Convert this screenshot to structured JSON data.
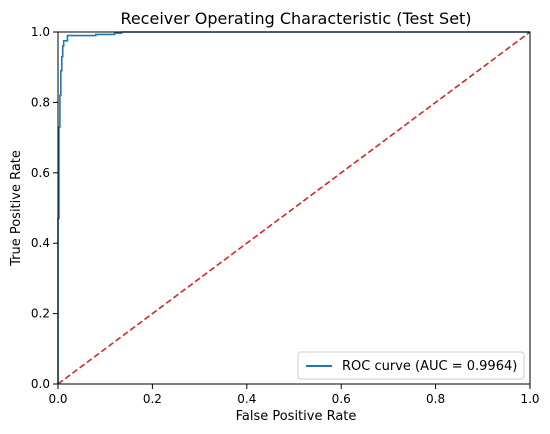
{
  "chart_data": {
    "type": "line",
    "title": "Receiver Operating Characteristic (Test Set)",
    "xlabel": "False Positive Rate",
    "ylabel": "True Positive Rate",
    "xlim": [
      0.0,
      1.0
    ],
    "ylim": [
      0.0,
      1.0
    ],
    "xticks": [
      "0.0",
      "0.2",
      "0.4",
      "0.6",
      "0.8",
      "1.0"
    ],
    "yticks": [
      "0.0",
      "0.2",
      "0.4",
      "0.6",
      "0.8",
      "1.0"
    ],
    "grid": false,
    "legend_position": "bottom-right",
    "series": [
      {
        "name": "ROC curve (AUC = 0.9964)",
        "color": "#1f77b4",
        "line_style": "solid",
        "x": [
          0.0,
          0.0,
          0.002,
          0.002,
          0.004,
          0.004,
          0.006,
          0.006,
          0.008,
          0.008,
          0.01,
          0.01,
          0.012,
          0.012,
          0.02,
          0.02,
          0.08,
          0.08,
          0.12,
          0.12,
          0.135,
          0.135,
          1.0
        ],
        "y": [
          0.0,
          0.47,
          0.47,
          0.73,
          0.73,
          0.82,
          0.82,
          0.89,
          0.89,
          0.93,
          0.93,
          0.96,
          0.96,
          0.975,
          0.975,
          0.99,
          0.99,
          0.993,
          0.993,
          0.997,
          0.997,
          1.0,
          1.0
        ]
      },
      {
        "name": "",
        "color": "#d62728",
        "line_style": "dashed",
        "x": [
          0.0,
          1.0
        ],
        "y": [
          0.0,
          1.0
        ]
      }
    ]
  }
}
